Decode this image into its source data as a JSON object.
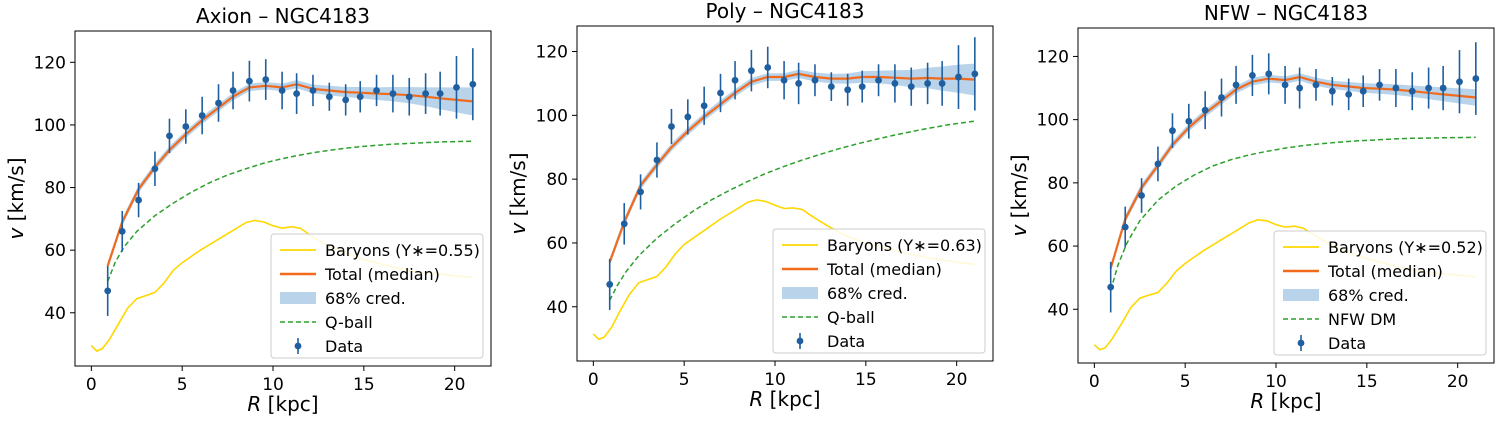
{
  "chart_data": [
    {
      "type": "line",
      "title": "Axion – NGC4183",
      "xlabel_italic": "R",
      "xlabel_unit": " [kpc]",
      "ylabel_italic": "v",
      "ylabel_unit": " [km/s]",
      "xlim": [
        -0.9,
        22.0
      ],
      "ylim": [
        23,
        130
      ],
      "xticks": [
        0,
        5,
        10,
        15,
        20
      ],
      "yticks": [
        40,
        60,
        80,
        100,
        120
      ],
      "grid": false,
      "legend_position": "bottom-right",
      "legend": [
        "Baryons (Υ∗=0.55)",
        "Total (median)",
        "68% cred.",
        "Q-ball",
        "Data"
      ],
      "colors": {
        "baryons": "#ffd700",
        "total": "#f26b1d",
        "band": "#a6c8e5",
        "dm": "#2ca02c",
        "data": "#1f5f9f"
      },
      "series": {
        "baryons": {
          "x": [
            0,
            0.3,
            0.6,
            1.0,
            1.5,
            2.0,
            2.5,
            3.0,
            3.5,
            4.0,
            4.5,
            5.0,
            6.0,
            7.0,
            8.0,
            8.5,
            9.0,
            9.5,
            10.0,
            10.5,
            11.0,
            11.5,
            12.0,
            13.0,
            14.0,
            15.0,
            16.0,
            17.0,
            18.0,
            19.0,
            20.0,
            21.0
          ],
          "y": [
            29.5,
            27.8,
            28.5,
            31.5,
            36.5,
            41.5,
            44.5,
            45.5,
            46.5,
            49.5,
            53.5,
            56.0,
            60.0,
            63.5,
            67.0,
            68.8,
            69.5,
            69.0,
            67.8,
            67.0,
            67.5,
            67.0,
            65.0,
            61.5,
            59.0,
            57.0,
            55.5,
            54.0,
            53.0,
            52.5,
            51.8,
            51.3
          ]
        },
        "total": {
          "x": [
            0.9,
            1.7,
            2.6,
            3.5,
            4.3,
            5.2,
            6.1,
            7.0,
            7.8,
            8.7,
            9.6,
            10.5,
            11.3,
            12.2,
            13.1,
            14.0,
            14.8,
            15.7,
            16.6,
            17.5,
            18.4,
            19.2,
            20.1,
            21.0
          ],
          "y": [
            55.0,
            69.0,
            79.5,
            86.5,
            92.0,
            97.0,
            101.5,
            105.5,
            109.0,
            112.0,
            112.5,
            112.0,
            113.0,
            111.5,
            111.0,
            110.5,
            110.3,
            110.0,
            109.8,
            109.5,
            109.0,
            108.5,
            108.0,
            107.5
          ]
        },
        "band_half_width": [
          1.2,
          1.2,
          1.2,
          1.2,
          1.2,
          1.2,
          1.2,
          1.2,
          1.2,
          1.2,
          1.2,
          1.2,
          1.3,
          1.4,
          1.5,
          1.6,
          1.8,
          2.0,
          2.3,
          2.6,
          3.0,
          3.5,
          4.0,
          4.5
        ],
        "dm": {
          "x": [
            0.9,
            1.3,
            1.8,
            2.5,
            3.5,
            4.5,
            5.5,
            6.5,
            7.5,
            8.5,
            9.5,
            10.5,
            11.5,
            12.5,
            13.5,
            14.5,
            15.5,
            16.5,
            17.5,
            18.5,
            19.5,
            21.0
          ],
          "y": [
            50,
            56.0,
            61.0,
            66.0,
            71.0,
            75.0,
            78.5,
            81.5,
            84.0,
            86.0,
            87.8,
            89.2,
            90.4,
            91.4,
            92.2,
            92.9,
            93.4,
            93.8,
            94.1,
            94.4,
            94.6,
            94.8
          ]
        },
        "data": {
          "x": [
            0.9,
            1.7,
            2.6,
            3.5,
            4.3,
            5.2,
            6.1,
            7.0,
            7.8,
            8.7,
            9.6,
            10.5,
            11.3,
            12.2,
            13.1,
            14.0,
            14.8,
            15.7,
            16.6,
            17.5,
            18.4,
            19.2,
            20.1,
            21.0
          ],
          "y": [
            47,
            66,
            76,
            86,
            96.5,
            99.5,
            103,
            107,
            111,
            114,
            114.5,
            111,
            110,
            111,
            109,
            108,
            109,
            111,
            110,
            109,
            110,
            110,
            112,
            113
          ],
          "err": [
            8,
            6.5,
            5.5,
            5.5,
            5.5,
            5.5,
            6,
            6,
            6,
            6.5,
            6.5,
            6,
            6.5,
            5,
            4.5,
            5,
            5,
            5,
            6,
            6,
            6.5,
            7,
            10,
            11.5
          ]
        }
      }
    },
    {
      "type": "line",
      "title": "Poly – NGC4183",
      "xlabel_italic": "R",
      "xlabel_unit": " [kpc]",
      "ylabel_italic": "v",
      "ylabel_unit": " [km/s]",
      "xlim": [
        -0.9,
        22.0
      ],
      "ylim": [
        23,
        128
      ],
      "xticks": [
        0,
        5,
        10,
        15,
        20
      ],
      "yticks": [
        40,
        60,
        80,
        100,
        120
      ],
      "grid": false,
      "legend_position": "bottom-right",
      "legend": [
        "Baryons (Υ∗=0.63)",
        "Total (median)",
        "68% cred.",
        "Q-ball",
        "Data"
      ],
      "colors": {
        "baryons": "#ffd700",
        "total": "#f26b1d",
        "band": "#a6c8e5",
        "dm": "#2ca02c",
        "data": "#1f5f9f"
      },
      "series": {
        "baryons": {
          "x": [
            0,
            0.3,
            0.6,
            1.0,
            1.5,
            2.0,
            2.5,
            3.0,
            3.5,
            4.0,
            4.5,
            5.0,
            6.0,
            7.0,
            8.0,
            8.5,
            9.0,
            9.5,
            10.0,
            10.5,
            11.0,
            11.5,
            12.0,
            13.0,
            14.0,
            15.0,
            16.0,
            17.0,
            18.0,
            19.0,
            20.0,
            21.0
          ],
          "y": [
            31.5,
            29.8,
            30.5,
            33.5,
            39.0,
            44.0,
            47.5,
            48.5,
            49.5,
            52.5,
            56.5,
            59.5,
            63.5,
            67.5,
            71.0,
            72.8,
            73.5,
            73.0,
            71.8,
            70.8,
            71.0,
            70.5,
            68.5,
            65.0,
            62.0,
            60.0,
            58.5,
            57.0,
            55.8,
            54.8,
            54.0,
            53.3
          ]
        },
        "total": {
          "x": [
            0.9,
            1.7,
            2.6,
            3.5,
            4.3,
            5.2,
            6.1,
            7.0,
            7.8,
            8.7,
            9.6,
            10.5,
            11.3,
            12.2,
            13.1,
            14.0,
            14.8,
            15.7,
            16.6,
            17.5,
            18.4,
            19.2,
            20.1,
            21.0
          ],
          "y": [
            54.0,
            66.5,
            78.0,
            84.5,
            90.0,
            95.0,
            99.5,
            103.5,
            107.0,
            110.5,
            112.0,
            112.0,
            113.0,
            112.0,
            111.5,
            111.5,
            112.0,
            112.0,
            111.8,
            111.5,
            111.7,
            111.5,
            111.5,
            111.2
          ]
        },
        "band_half_width": [
          1.2,
          1.2,
          1.2,
          1.2,
          1.2,
          1.2,
          1.2,
          1.2,
          1.2,
          1.2,
          1.2,
          1.2,
          1.3,
          1.4,
          1.5,
          1.6,
          1.8,
          2.0,
          2.3,
          2.7,
          3.2,
          3.8,
          4.4,
          5.0
        ],
        "dm": {
          "x": [
            0.9,
            1.3,
            1.8,
            2.5,
            3.5,
            4.5,
            5.5,
            6.5,
            7.5,
            8.5,
            9.5,
            10.5,
            11.5,
            12.5,
            13.5,
            14.5,
            15.5,
            16.5,
            17.5,
            18.5,
            19.5,
            21.0
          ],
          "y": [
            42,
            46.5,
            51.0,
            56.0,
            61.5,
            66.0,
            70.0,
            73.5,
            76.5,
            79.3,
            81.8,
            84.0,
            86.0,
            87.8,
            89.5,
            91.0,
            92.4,
            93.7,
            94.9,
            96.0,
            97.0,
            98.2
          ]
        },
        "data": {
          "x": [
            0.9,
            1.7,
            2.6,
            3.5,
            4.3,
            5.2,
            6.1,
            7.0,
            7.8,
            8.7,
            9.6,
            10.5,
            11.3,
            12.2,
            13.1,
            14.0,
            14.8,
            15.7,
            16.6,
            17.5,
            18.4,
            19.2,
            20.1,
            21.0
          ],
          "y": [
            47,
            66,
            76,
            86,
            96.5,
            99.5,
            103,
            107,
            111,
            114,
            115,
            111,
            110,
            111,
            109,
            108,
            109,
            111,
            110,
            109,
            110,
            110,
            112,
            113
          ],
          "err": [
            8,
            6.5,
            5.5,
            5.5,
            5.5,
            5.5,
            6,
            6,
            6,
            6.5,
            6.5,
            6,
            6.5,
            5,
            4.5,
            5,
            5,
            5,
            6,
            6,
            6.5,
            7,
            10,
            11.5
          ]
        }
      }
    },
    {
      "type": "line",
      "title": "NFW – NGC4183",
      "xlabel_italic": "R",
      "xlabel_unit": " [kpc]",
      "ylabel_italic": "v",
      "ylabel_unit": " [km/s]",
      "xlim": [
        -0.9,
        22.0
      ],
      "ylim": [
        23,
        129
      ],
      "xticks": [
        0,
        5,
        10,
        15,
        20
      ],
      "yticks": [
        40,
        60,
        80,
        100,
        120
      ],
      "grid": false,
      "legend_position": "bottom-right",
      "legend": [
        "Baryons (Υ∗=0.52)",
        "Total (median)",
        "68% cred.",
        "NFW DM",
        "Data"
      ],
      "colors": {
        "baryons": "#ffd700",
        "total": "#f26b1d",
        "band": "#a6c8e5",
        "dm": "#2ca02c",
        "data": "#1f5f9f"
      },
      "series": {
        "baryons": {
          "x": [
            0,
            0.3,
            0.6,
            1.0,
            1.5,
            2.0,
            2.5,
            3.0,
            3.5,
            4.0,
            4.5,
            5.0,
            6.0,
            7.0,
            8.0,
            8.5,
            9.0,
            9.5,
            10.0,
            10.5,
            11.0,
            11.5,
            12.0,
            13.0,
            14.0,
            15.0,
            16.0,
            17.0,
            18.0,
            19.0,
            20.0,
            21.0
          ],
          "y": [
            28.8,
            27.2,
            27.8,
            30.8,
            35.5,
            40.5,
            43.5,
            44.5,
            45.3,
            48.3,
            52.0,
            54.5,
            58.5,
            62.0,
            65.5,
            67.3,
            68.3,
            68.0,
            66.8,
            66.0,
            66.3,
            65.7,
            63.8,
            60.5,
            58.0,
            56.0,
            54.5,
            53.0,
            52.0,
            51.3,
            50.8,
            50.2
          ]
        },
        "total": {
          "x": [
            0.9,
            1.7,
            2.6,
            3.5,
            4.3,
            5.2,
            6.1,
            7.0,
            7.8,
            8.7,
            9.6,
            10.5,
            11.3,
            12.2,
            13.1,
            14.0,
            14.8,
            15.7,
            16.6,
            17.5,
            18.4,
            19.2,
            20.1,
            21.0
          ],
          "y": [
            53.0,
            68.5,
            78.5,
            85.5,
            92.0,
            97.5,
            102.0,
            106.0,
            109.5,
            112.0,
            113.0,
            112.5,
            113.5,
            112.0,
            111.0,
            110.5,
            110.0,
            109.8,
            109.5,
            109.0,
            108.5,
            108.0,
            107.5,
            107.0
          ]
        },
        "band_half_width": [
          1.2,
          1.2,
          1.2,
          1.2,
          1.2,
          1.2,
          1.2,
          1.2,
          1.2,
          1.2,
          1.2,
          1.2,
          1.2,
          1.3,
          1.3,
          1.4,
          1.5,
          1.6,
          1.7,
          1.8,
          2.0,
          2.2,
          2.4,
          2.6
        ],
        "dm": {
          "x": [
            0.9,
            1.3,
            1.8,
            2.5,
            3.5,
            4.5,
            5.5,
            6.5,
            7.5,
            8.5,
            9.5,
            10.5,
            11.5,
            12.5,
            13.5,
            14.5,
            15.5,
            16.5,
            17.5,
            18.5,
            19.5,
            21.0
          ],
          "y": [
            46,
            54.0,
            61.0,
            68.0,
            74.5,
            79.0,
            82.5,
            85.3,
            87.3,
            88.8,
            90.0,
            91.0,
            91.8,
            92.4,
            92.9,
            93.3,
            93.6,
            93.9,
            94.1,
            94.2,
            94.3,
            94.4
          ]
        },
        "data": {
          "x": [
            0.9,
            1.7,
            2.6,
            3.5,
            4.3,
            5.2,
            6.1,
            7.0,
            7.8,
            8.7,
            9.6,
            10.5,
            11.3,
            12.2,
            13.1,
            14.0,
            14.8,
            15.7,
            16.6,
            17.5,
            18.4,
            19.2,
            20.1,
            21.0
          ],
          "y": [
            47,
            66,
            76,
            86,
            96.5,
            99.5,
            103,
            107,
            111,
            114,
            114.5,
            111,
            110,
            111,
            109,
            108,
            109,
            111,
            110,
            109,
            110,
            110,
            112,
            113
          ],
          "err": [
            8,
            6.5,
            5.5,
            5.5,
            5.5,
            5.5,
            6,
            6,
            6,
            6.5,
            6.5,
            6,
            6.5,
            5,
            4.5,
            5,
            5,
            5,
            6,
            6,
            6.5,
            7,
            10,
            11.5
          ]
        }
      }
    }
  ]
}
